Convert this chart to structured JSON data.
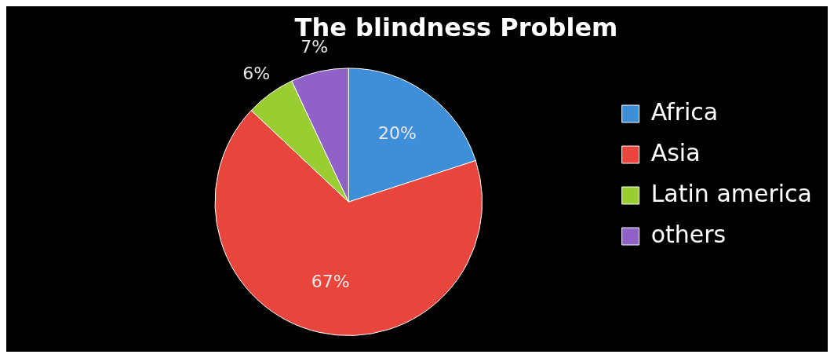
{
  "chart_data": {
    "type": "pie",
    "title": "The blindness Problem",
    "categories": [
      "Africa",
      "Asia",
      "Latin america",
      "others"
    ],
    "values": [
      20,
      67,
      6,
      7
    ],
    "value_labels": [
      "20%",
      "67%",
      "6%",
      "7%"
    ],
    "colors": [
      "#3f8fd8",
      "#e8453c",
      "#9acd32",
      "#9062c8"
    ],
    "legend": "right"
  }
}
